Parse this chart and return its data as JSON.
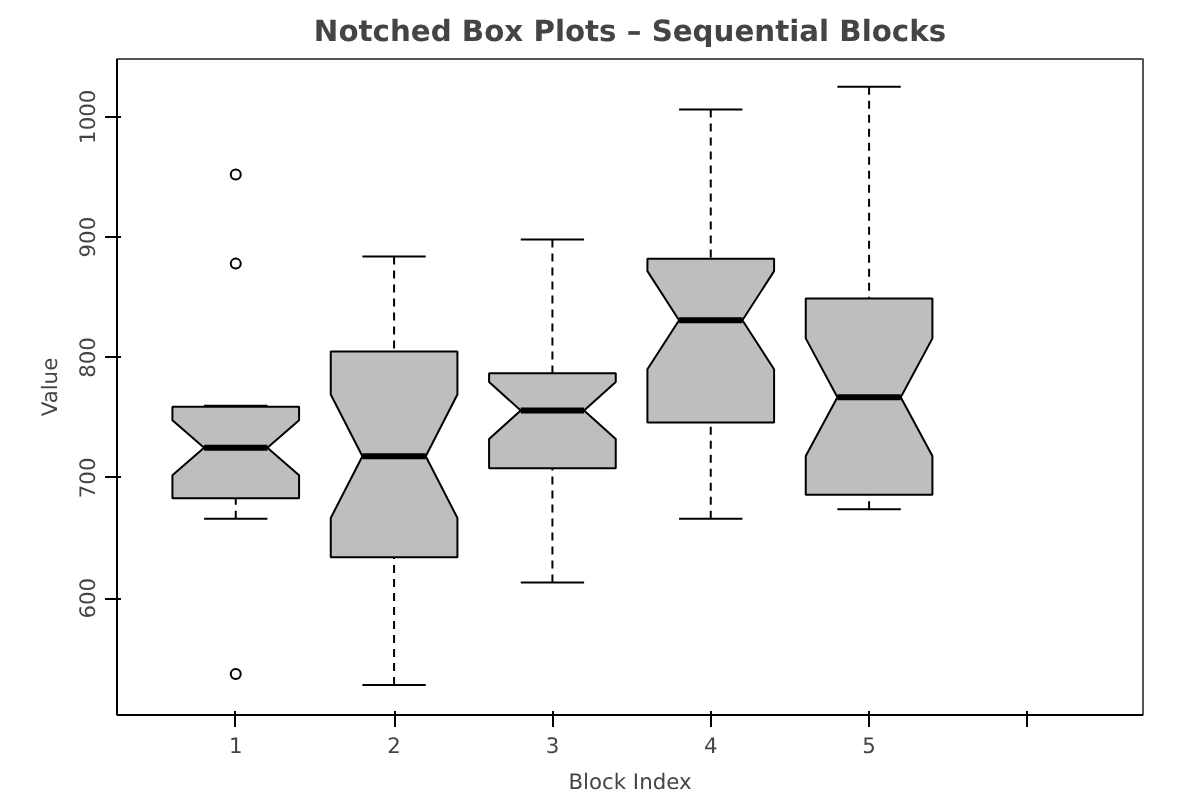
{
  "chart_data": {
    "type": "box",
    "title": "Notched Box Plots – Sequential Blocks",
    "xlabel": "Block Index",
    "ylabel": "Value",
    "categories": [
      "1",
      "2",
      "3",
      "4",
      "5",
      null
    ],
    "color": "#bebebe",
    "boxes": [
      {
        "low": 666,
        "q1": 683,
        "median": 725,
        "q3": 759,
        "high": 760,
        "outliers": [
          952,
          878,
          537
        ]
      },
      {
        "low": 528,
        "q1": 634,
        "median": 718,
        "q3": 805,
        "high": 884
      },
      {
        "low": 613,
        "q1": 708,
        "median": 756,
        "q3": 787,
        "high": 898
      },
      {
        "low": 666,
        "q1": 746,
        "median": 831,
        "q3": 882,
        "high": 1006
      },
      {
        "low": 674,
        "q1": 686,
        "median": 767,
        "q3": 849,
        "high": 1025
      },
      null
    ],
    "ylim": [
      503,
      1048
    ],
    "yticks": [
      600,
      700,
      800,
      900,
      1000
    ],
    "grid": false
  }
}
